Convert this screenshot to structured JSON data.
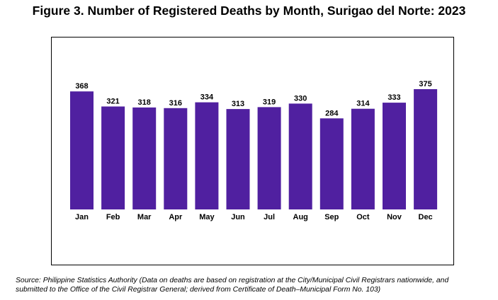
{
  "title": "Figure 3. Number of Registered Deaths by Month, Surigao del Norte: 2023",
  "source_line1": "Source: Philippine Statistics Authority (Data on deaths are based on registration at the City/Municipal Civil Registrars nationwide, and",
  "source_line2": "submitted to the Office of the Civil Registrar General; derived from Certificate of Death–Municipal Form No. 103)",
  "chart_data": {
    "type": "bar",
    "categories": [
      "Jan",
      "Feb",
      "Mar",
      "Apr",
      "May",
      "Jun",
      "Jul",
      "Aug",
      "Sep",
      "Oct",
      "Nov",
      "Dec"
    ],
    "values": [
      368,
      321,
      318,
      316,
      334,
      313,
      319,
      330,
      284,
      314,
      333,
      375
    ],
    "data_labels": [
      "368",
      "321",
      "318",
      "316",
      "334",
      "313",
      "319",
      "330",
      "284",
      "314",
      "333",
      "375"
    ],
    "bar_color": "#5020A0",
    "ylim": [
      0,
      420
    ],
    "grid": false,
    "legend": "none"
  }
}
